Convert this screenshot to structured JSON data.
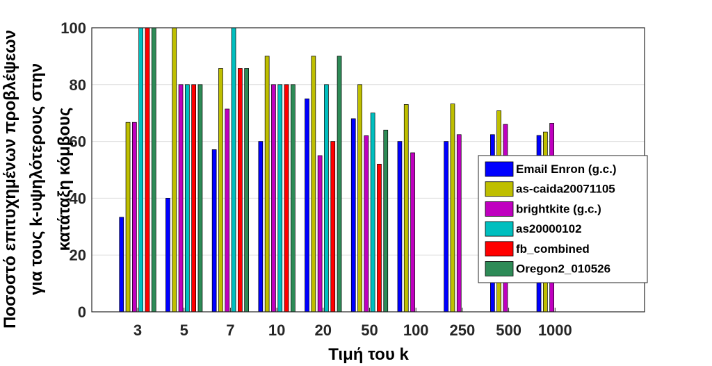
{
  "chart_data": {
    "type": "bar",
    "xlabel": "Τιμή του k",
    "ylabel_lines": [
      "Ποσοστό επιτυχημένων προβλέψεων",
      "για τους k-υψηλότερους στην",
      "κατάταξη κόμβους"
    ],
    "categories": [
      "3",
      "5",
      "7",
      "10",
      "20",
      "50",
      "100",
      "250",
      "500",
      "1000"
    ],
    "ylim": [
      0,
      100
    ],
    "yticks": [
      0,
      20,
      40,
      60,
      80,
      100
    ],
    "grid": true,
    "legend_position": "right",
    "series": [
      {
        "name": "Email Enron (g.c.)",
        "color": "#0000ff",
        "values": [
          33.3,
          40,
          57.1,
          60,
          75,
          68,
          60,
          60,
          62.4,
          62.1
        ]
      },
      {
        "name": "as-caida20071105",
        "color": "#bfbf00",
        "values": [
          66.7,
          100,
          85.7,
          90,
          90,
          80,
          73,
          73.2,
          70.8,
          63.3
        ]
      },
      {
        "name": "brightkite (g.c.)",
        "color": "#bf00bf",
        "values": [
          66.7,
          80,
          71.4,
          80,
          55,
          62,
          56,
          62.4,
          66,
          66.4
        ]
      },
      {
        "name": "as20000102",
        "color": "#00bfbf",
        "values": [
          100,
          80,
          100,
          80,
          80,
          70,
          null,
          null,
          null,
          null
        ]
      },
      {
        "name": "fb_combined",
        "color": "#ff0000",
        "values": [
          100,
          80,
          85.7,
          80,
          60,
          52,
          null,
          null,
          null,
          null
        ]
      },
      {
        "name": "Oregon2_010526",
        "color": "#2e8b57",
        "values": [
          100,
          80,
          85.7,
          80,
          90,
          64,
          null,
          null,
          null,
          null
        ]
      }
    ]
  }
}
